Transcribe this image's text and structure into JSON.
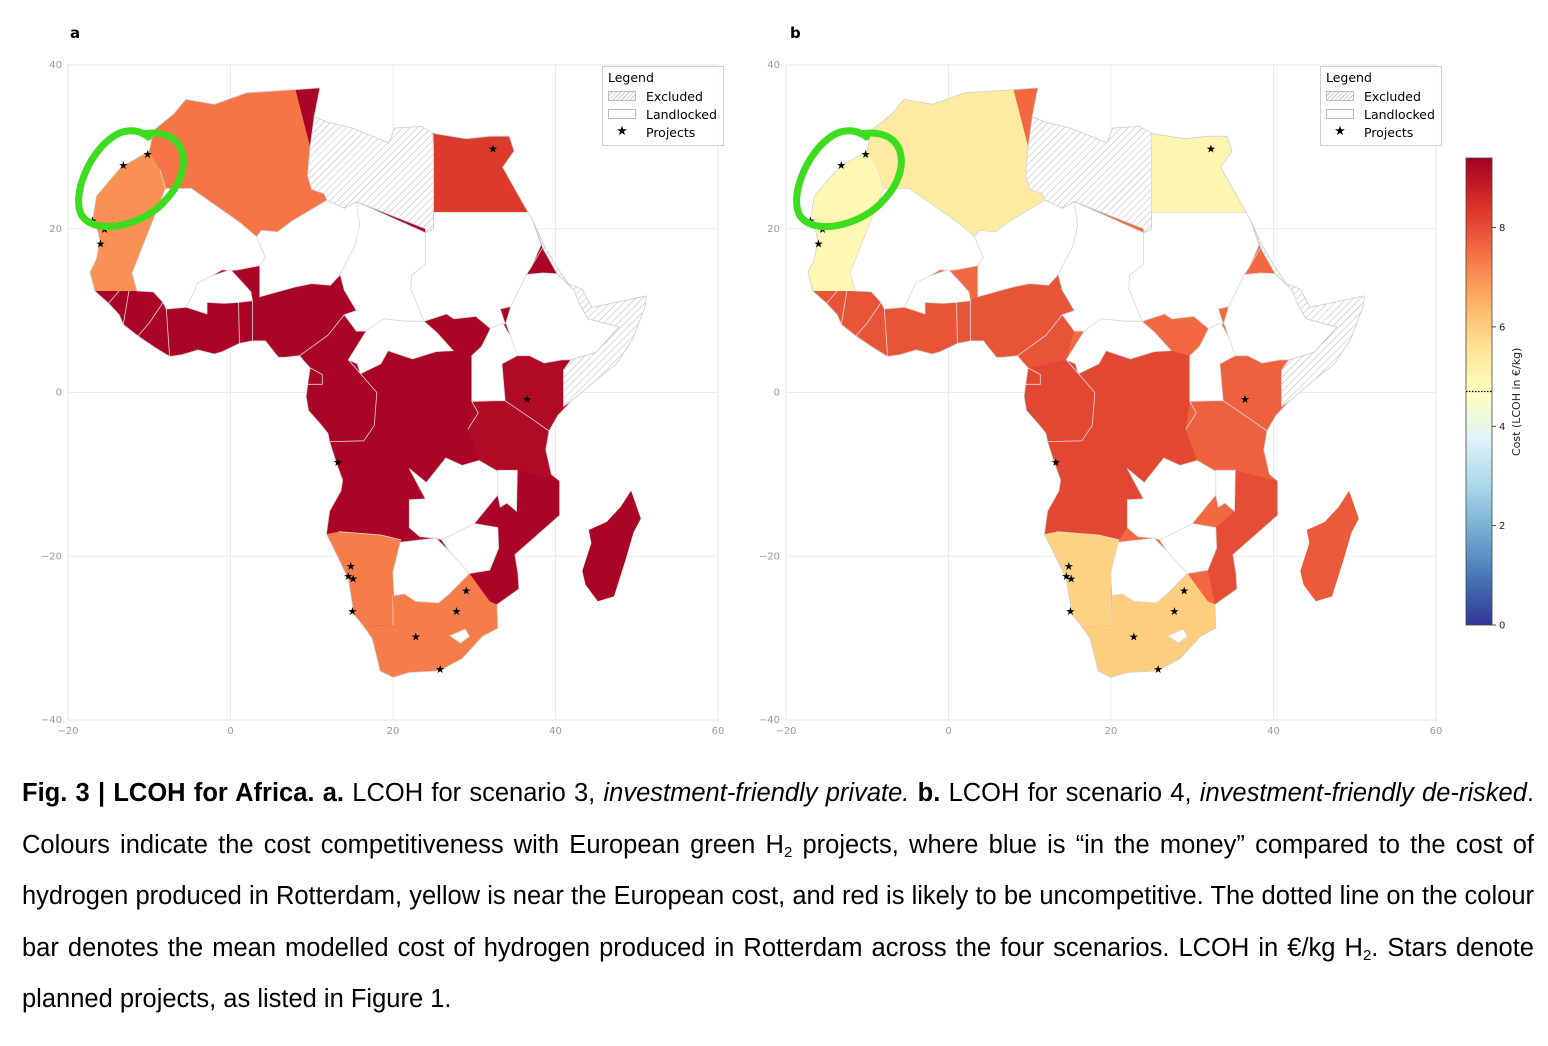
{
  "panels": [
    {
      "letter": "a",
      "scenario_mode": "private"
    },
    {
      "letter": "b",
      "scenario_mode": "derisked"
    }
  ],
  "axes": {
    "x_ticks": [
      "−20",
      "0",
      "20",
      "40",
      "60"
    ],
    "y_ticks": [
      "40",
      "20",
      "0",
      "−20",
      "−40"
    ]
  },
  "legend": {
    "title": "Legend",
    "items": [
      {
        "label": "Excluded",
        "kind": "hatch"
      },
      {
        "label": "Landlocked",
        "kind": "plain"
      },
      {
        "label": "Projects",
        "kind": "star"
      }
    ]
  },
  "colorbar": {
    "label": "Cost (LCOH in €/kg)",
    "ticks": [
      "0",
      "2",
      "4",
      "6",
      "8"
    ],
    "dotted_level": 4.7,
    "min": 0,
    "max": 9.4,
    "colors": [
      "#313695",
      "#4575b4",
      "#74add1",
      "#abd9e9",
      "#e0f3f8",
      "#ffffbf",
      "#fee090",
      "#fdae61",
      "#f46d43",
      "#d73027",
      "#a50026"
    ]
  },
  "projects": [
    {
      "lon": -13.2,
      "lat": 27.8
    },
    {
      "lon": -10.2,
      "lat": 29.1
    },
    {
      "lon": -17.0,
      "lat": 21.0
    },
    {
      "lon": -15.5,
      "lat": 20.0
    },
    {
      "lon": -16.0,
      "lat": 18.2
    },
    {
      "lon": 32.3,
      "lat": 29.8
    },
    {
      "lon": 36.5,
      "lat": -0.8
    },
    {
      "lon": 13.2,
      "lat": -8.5
    },
    {
      "lon": 14.8,
      "lat": -21.2
    },
    {
      "lon": 14.5,
      "lat": -22.4
    },
    {
      "lon": 15.1,
      "lat": -22.7
    },
    {
      "lon": 15.0,
      "lat": -26.7
    },
    {
      "lon": 29.0,
      "lat": -24.2
    },
    {
      "lon": 27.8,
      "lat": -26.7
    },
    {
      "lon": 22.8,
      "lat": -29.8
    },
    {
      "lon": 25.8,
      "lat": -33.8
    }
  ],
  "caption": {
    "fig": "Fig. 3 | LCOH for Africa.",
    "a_label": "a.",
    "a_text": "LCOH for scenario 3,",
    "a_italic": "investment-friendly private.",
    "b_label": "b.",
    "b_text": "LCOH for scenario 4,",
    "b_italic": "investment-friendly de-risked",
    "body_1": ". Colours indicate the cost competitiveness with European green H",
    "sub_2": "2",
    "body_2": " projects, where blue is “in the money” compared to the cost of hydrogen produced in Rotterdam, yellow is near the European cost, and red is likely to be uncompetitive. The dotted line on the colour bar denotes the mean modelled cost of hydrogen produced in Rotterdam across the four scenarios. LCOH in €/kg H",
    "body_3": ". Stars denote planned projects, as listed in Figure 1."
  }
}
